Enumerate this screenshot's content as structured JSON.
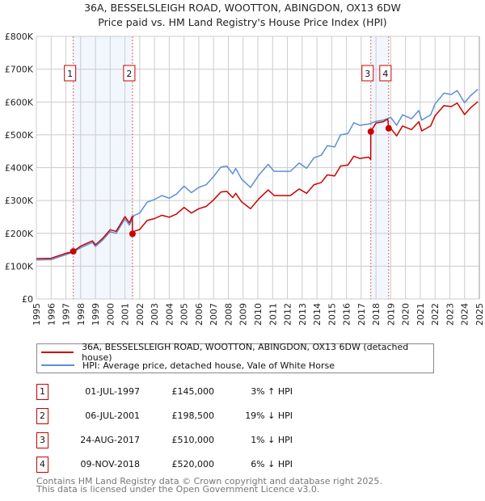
{
  "chart_data": {
    "type": "line",
    "title": "36A, BESSELSLEIGH ROAD, WOOTTON, ABINGDON, OX13 6DW",
    "subtitle": "Price paid vs. HM Land Registry's House Price Index (HPI)",
    "xlim": [
      1995,
      2025
    ],
    "ylim": [
      0,
      800000
    ],
    "yticks": [
      0,
      100000,
      200000,
      300000,
      400000,
      500000,
      600000,
      700000,
      800000
    ],
    "ytick_labels": [
      "£0",
      "£100K",
      "£200K",
      "£300K",
      "£400K",
      "£500K",
      "£600K",
      "£700K",
      "£800K"
    ],
    "xtick_labels": [
      "1995",
      "1996",
      "1997",
      "1998",
      "1999",
      "2000",
      "2001",
      "2002",
      "2003",
      "2004",
      "2005",
      "2006",
      "2007",
      "2008",
      "2009",
      "2010",
      "2011",
      "2012",
      "2013",
      "2014",
      "2015",
      "2016",
      "2017",
      "2018",
      "2019",
      "2020",
      "2021",
      "2022",
      "2023",
      "2024",
      "2025"
    ],
    "grid": true,
    "series": [
      {
        "name": "36A, BESSELSLEIGH ROAD, WOOTTON, ABINGDON, OX13 6DW (detached house)",
        "color": "#cc0000",
        "x": [
          1995,
          1996,
          1997,
          1997.5,
          1998,
          1998.8,
          1999,
          1999.5,
          2000,
          2000.4,
          2001,
          2001.3,
          2001.5,
          2001.51,
          2001.6,
          2002,
          2002.5,
          2003,
          2003.5,
          2004,
          2004.5,
          2005,
          2005.5,
          2006,
          2006.5,
          2007,
          2007.5,
          2007.9,
          2008.3,
          2008.5,
          2008.9,
          2009.5,
          2010.06,
          2010.7,
          2011.1,
          2012.2,
          2012.8,
          2013.3,
          2013.8,
          2014.3,
          2014.7,
          2015.2,
          2015.6,
          2016.1,
          2016.5,
          2016.9,
          2017.5,
          2017.64,
          2017.65,
          2018,
          2018.5,
          2018.8,
          2018.86,
          2019,
          2019.4,
          2019.8,
          2020.4,
          2020.9,
          2021.1,
          2021.7,
          2022,
          2022.6,
          2023.1,
          2023.5,
          2024,
          2024.4,
          2024.9
        ],
        "y": [
          123000,
          124000,
          139000,
          145000,
          161000,
          177000,
          165000,
          185000,
          211000,
          206000,
          251000,
          232000,
          252000,
          198500,
          206000,
          212000,
          239000,
          245000,
          255000,
          249000,
          259000,
          279000,
          262000,
          275000,
          282000,
          302000,
          326000,
          328000,
          309000,
          322000,
          296000,
          275000,
          305000,
          332000,
          315000,
          315000,
          335000,
          322000,
          348000,
          355000,
          378000,
          375000,
          405000,
          408000,
          435000,
          428000,
          432000,
          425000,
          510000,
          536000,
          540000,
          548000,
          520000,
          520000,
          497000,
          527000,
          516000,
          540000,
          512000,
          527000,
          558000,
          589000,
          586000,
          597000,
          562000,
          582000,
          601000
        ]
      },
      {
        "name": "HPI: Average price, detached house, Vale of White Horse",
        "color": "#5b8fd4",
        "x": [
          1995,
          1996,
          1997,
          1997.5,
          1998,
          1998.8,
          1999,
          1999.5,
          2000,
          2000.4,
          2001,
          2001.3,
          2001.6,
          2002,
          2002.5,
          2003,
          2003.5,
          2004,
          2004.5,
          2005,
          2005.5,
          2006,
          2006.5,
          2007,
          2007.5,
          2007.9,
          2008.3,
          2008.5,
          2008.9,
          2009.5,
          2010.06,
          2010.7,
          2011.1,
          2012.2,
          2012.8,
          2013.3,
          2013.8,
          2014.3,
          2014.7,
          2015.2,
          2015.6,
          2016.1,
          2016.5,
          2016.9,
          2017.5,
          2018,
          2018.5,
          2019,
          2019.4,
          2019.8,
          2020.4,
          2020.9,
          2021.1,
          2021.7,
          2022,
          2022.6,
          2023.1,
          2023.5,
          2024,
          2024.4,
          2024.9
        ],
        "y": [
          119000,
          120000,
          135000,
          143000,
          156000,
          172000,
          160000,
          180000,
          205000,
          200000,
          244000,
          225000,
          254000,
          262000,
          295000,
          303000,
          315000,
          307000,
          320000,
          344000,
          324000,
          340000,
          348000,
          373000,
          402000,
          405000,
          381000,
          398000,
          365000,
          340000,
          377000,
          410000,
          389000,
          389000,
          414000,
          398000,
          430000,
          438000,
          467000,
          463000,
          500000,
          504000,
          537000,
          529000,
          533000,
          541000,
          545000,
          553000,
          529000,
          561000,
          549000,
          574000,
          545000,
          561000,
          594000,
          627000,
          623000,
          635000,
          598000,
          619000,
          639000
        ]
      }
    ],
    "sales": [
      {
        "label": "1",
        "x": 1997.5,
        "price": 145000
      },
      {
        "label": "2",
        "x": 2001.51,
        "price": 198500
      },
      {
        "label": "3",
        "x": 2017.65,
        "price": 510000
      },
      {
        "label": "4",
        "x": 2018.86,
        "price": 520000
      }
    ],
    "shaded_ranges": [
      [
        1997.5,
        2001.51
      ],
      [
        2017.65,
        2018.86
      ]
    ]
  },
  "legend": {
    "property": "36A, BESSELSLEIGH ROAD, WOOTTON, ABINGDON, OX13 6DW (detached house)",
    "hpi": "HPI: Average price, detached house, Vale of White Horse"
  },
  "transactions": [
    {
      "num": "1",
      "date": "01-JUL-1997",
      "price": "£145,000",
      "hpi": "3% ↑ HPI"
    },
    {
      "num": "2",
      "date": "06-JUL-2001",
      "price": "£198,500",
      "hpi": "19% ↓ HPI"
    },
    {
      "num": "3",
      "date": "24-AUG-2017",
      "price": "£510,000",
      "hpi": "1% ↓ HPI"
    },
    {
      "num": "4",
      "date": "09-NOV-2018",
      "price": "£520,000",
      "hpi": "6% ↓ HPI"
    }
  ],
  "footer": {
    "line1": "Contains HM Land Registry data © Crown copyright and database right 2025.",
    "line2": "This data is licensed under the Open Government Licence v3.0."
  }
}
